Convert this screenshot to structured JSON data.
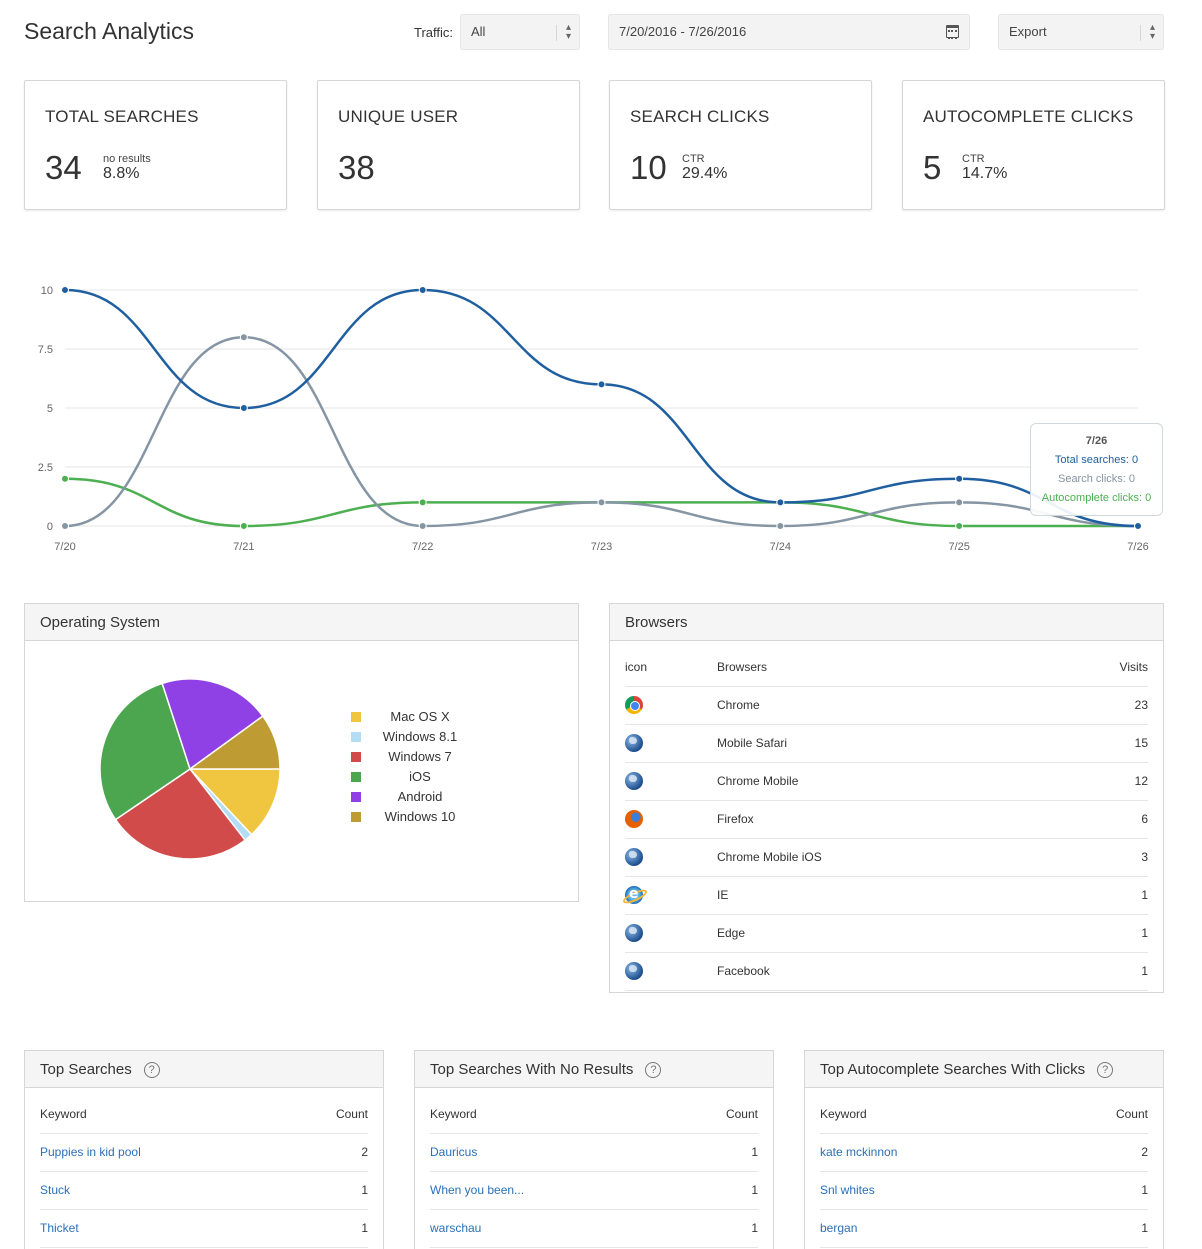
{
  "header": {
    "title": "Search Analytics",
    "traffic_label": "Traffic:",
    "traffic_value": "All",
    "date_range": "7/20/2016 - 7/26/2016",
    "export_label": "Export"
  },
  "kpis": [
    {
      "title": "TOTAL SEARCHES",
      "value": "34",
      "sub_label": "no results",
      "sub_value": "8.8%"
    },
    {
      "title": "UNIQUE USER",
      "value": "38",
      "sub_label": "",
      "sub_value": ""
    },
    {
      "title": "SEARCH CLICKS",
      "value": "10",
      "sub_label": "CTR",
      "sub_value": "29.4%"
    },
    {
      "title": "AUTOCOMPLETE CLICKS",
      "value": "5",
      "sub_label": "CTR",
      "sub_value": "14.7%"
    }
  ],
  "chart_data": [
    {
      "type": "line",
      "x": [
        "7/20",
        "7/21",
        "7/22",
        "7/23",
        "7/24",
        "7/25",
        "7/26"
      ],
      "yticks": [
        "0",
        "2.5",
        "5",
        "7.5",
        "10"
      ],
      "ylim": [
        0,
        10
      ],
      "grid": true,
      "series": [
        {
          "name": "Total searches",
          "color": "#1f5fa0",
          "values": [
            10,
            5,
            10,
            6,
            1,
            2,
            0
          ]
        },
        {
          "name": "Search clicks",
          "color": "#8595a3",
          "values": [
            0,
            8,
            0,
            1,
            0,
            1,
            0
          ]
        },
        {
          "name": "Autocomplete clicks",
          "color": "#4caf50",
          "values": [
            2,
            0,
            1,
            1,
            1,
            0,
            0
          ]
        }
      ],
      "tooltip": {
        "title": "7/26",
        "lines": [
          "Total searches: 0",
          "Search clicks: 0",
          "Autocomplete clicks: 0"
        ]
      }
    },
    {
      "type": "pie",
      "title": "Operating System",
      "slices": [
        {
          "label": "Mac OS X",
          "value": 13,
          "color": "#f0c53f"
        },
        {
          "label": "Windows 8.1",
          "value": 1.5,
          "color": "#b3dcf5"
        },
        {
          "label": "Windows 7",
          "value": 26,
          "color": "#d14b4b"
        },
        {
          "label": "iOS",
          "value": 29.5,
          "color": "#4ba64f"
        },
        {
          "label": "Android",
          "value": 20,
          "color": "#9041e6"
        },
        {
          "label": "Windows 10",
          "value": 10,
          "color": "#bf9c33"
        }
      ]
    }
  ],
  "browsers": {
    "title": "Browsers",
    "columns": [
      "icon",
      "Browsers",
      "Visits"
    ],
    "rows": [
      {
        "icon": "chrome-icon",
        "name": "Chrome",
        "visits": "23"
      },
      {
        "icon": "globe-icon",
        "name": "Mobile Safari",
        "visits": "15"
      },
      {
        "icon": "globe-icon",
        "name": "Chrome Mobile",
        "visits": "12"
      },
      {
        "icon": "firefox-icon",
        "name": "Firefox",
        "visits": "6"
      },
      {
        "icon": "globe-icon",
        "name": "Chrome Mobile iOS",
        "visits": "3"
      },
      {
        "icon": "ie-icon",
        "name": "IE",
        "visits": "1"
      },
      {
        "icon": "globe-icon",
        "name": "Edge",
        "visits": "1"
      },
      {
        "icon": "globe-icon",
        "name": "Facebook",
        "visits": "1"
      }
    ]
  },
  "bottom_tables": [
    {
      "title": "Top Searches",
      "columns": [
        "Keyword",
        "Count"
      ],
      "rows": [
        [
          "Puppies in kid pool",
          "2"
        ],
        [
          "Stuck",
          "1"
        ],
        [
          "Thicket",
          "1"
        ]
      ]
    },
    {
      "title": "Top Searches With No Results",
      "columns": [
        "Keyword",
        "Count"
      ],
      "rows": [
        [
          "Dauricus",
          "1"
        ],
        [
          "When you been...",
          "1"
        ],
        [
          "warschau",
          "1"
        ]
      ]
    },
    {
      "title": "Top Autocomplete Searches With Clicks",
      "columns": [
        "Keyword",
        "Count"
      ],
      "rows": [
        [
          "kate mckinnon",
          "2"
        ],
        [
          "Snl whites",
          "1"
        ],
        [
          "bergan",
          "1"
        ]
      ]
    }
  ],
  "help_glyph": "?"
}
